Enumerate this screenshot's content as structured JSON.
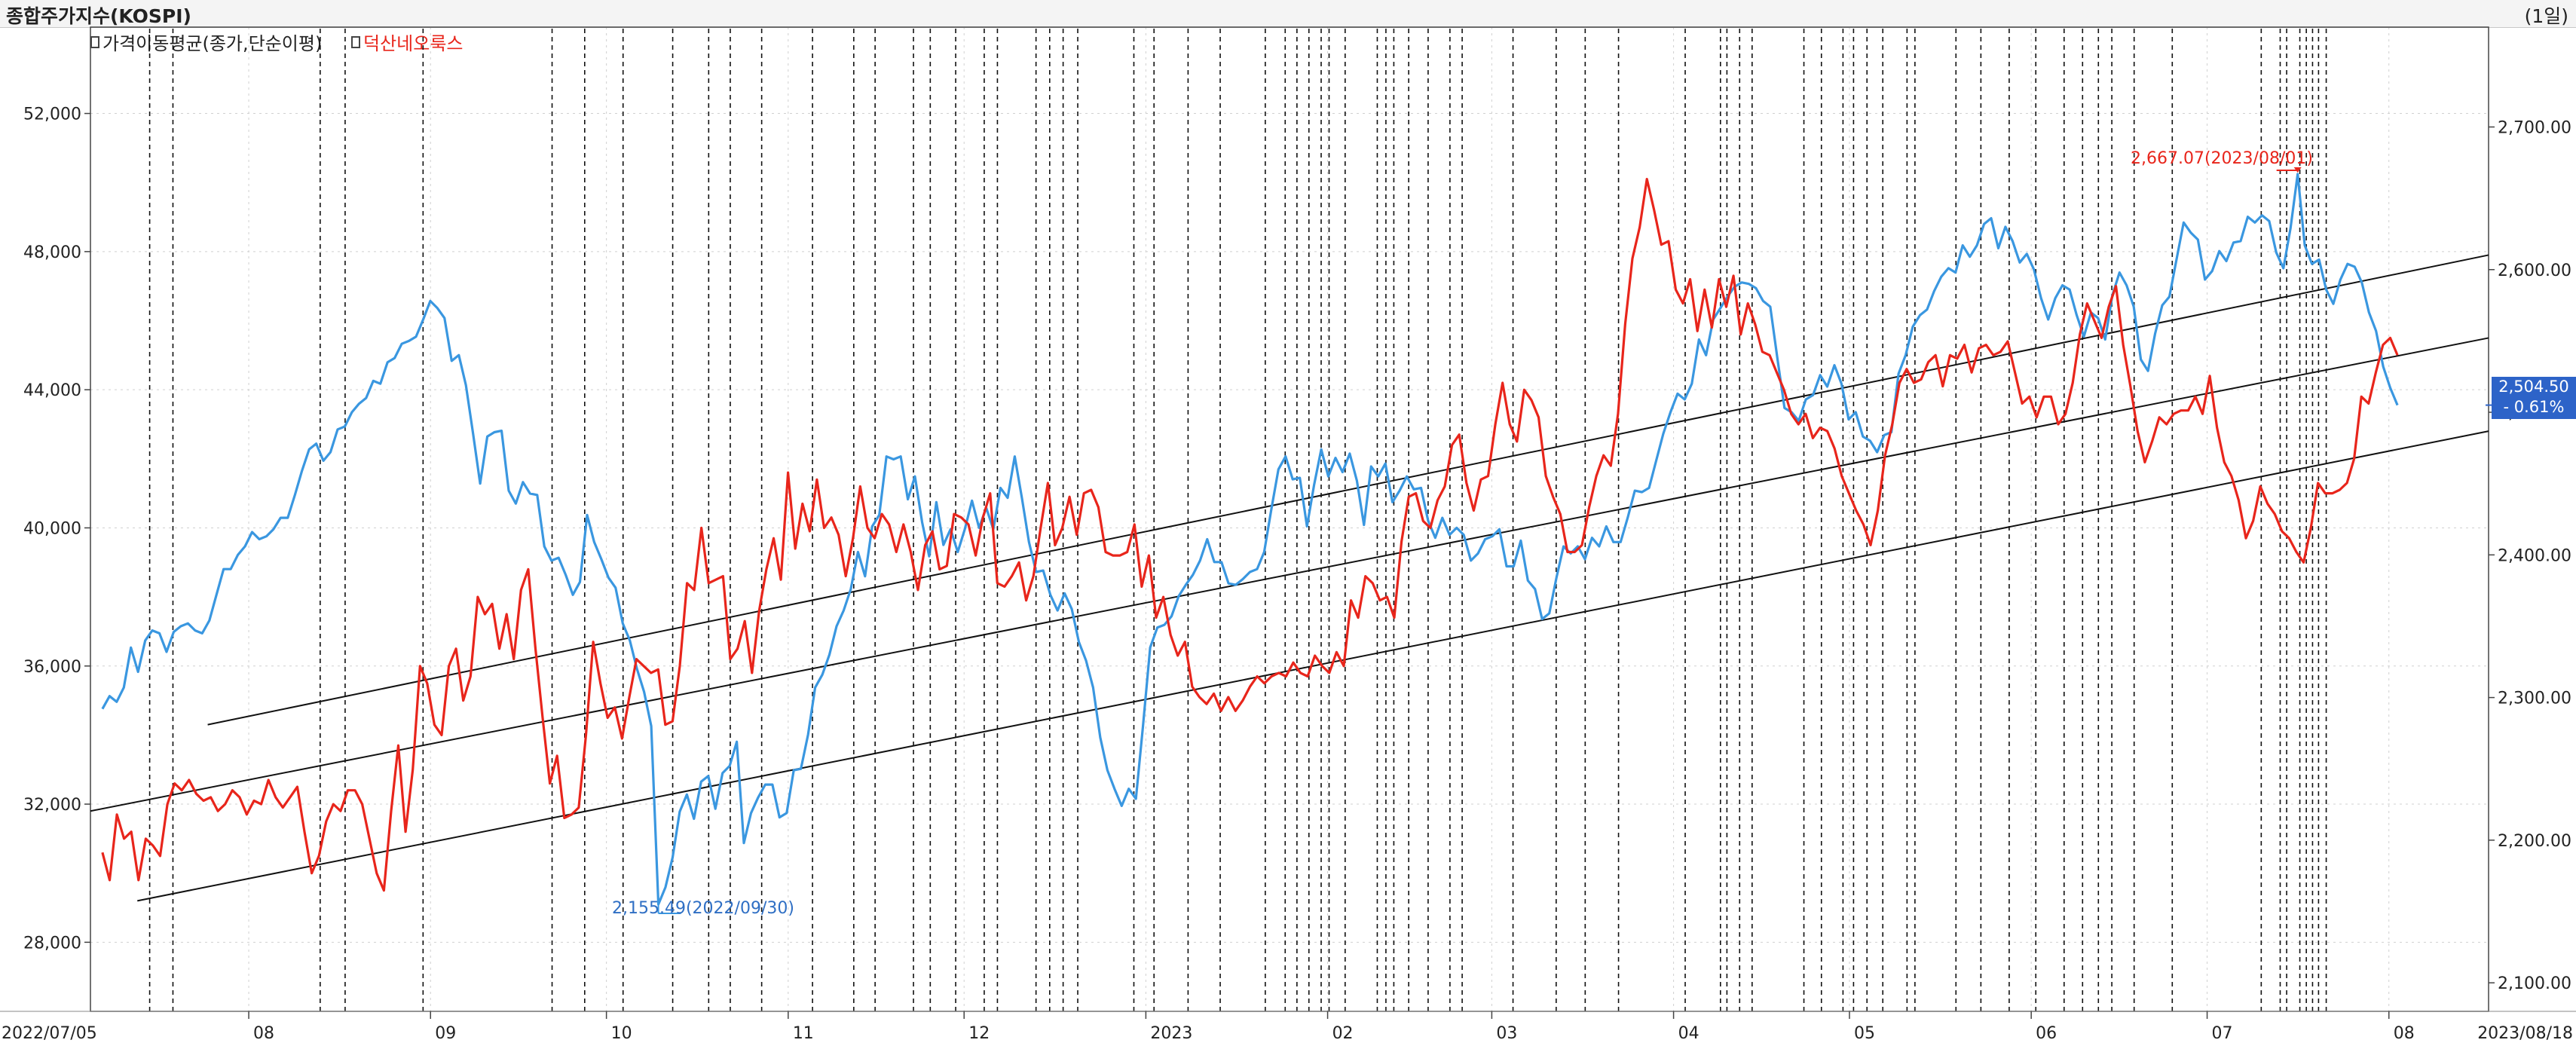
{
  "header": {
    "title": "종합주가지수(KOSPI)",
    "period": "(1일)"
  },
  "legend": {
    "moving_average": "가격이동평균(종가,단순이평)",
    "red_series": "덕산네오룩스"
  },
  "annotations": {
    "low": "2,155.49(2022/09/30)",
    "high": "2,667.07(2023/08/01)"
  },
  "current": {
    "value": "2,504.50",
    "change": "- 0.61%"
  },
  "colors": {
    "kospi": "#3a97e0",
    "stock": "#e8251b",
    "channel": "#111111",
    "vline": "#111111",
    "grid": "#d0d0d0",
    "badge": "#2d63c8"
  },
  "chart_data": {
    "type": "line",
    "x_start": "2022/07/05",
    "x_end": "2023/08/18",
    "x_tick_labels": [
      "2022/07/05",
      "08",
      "09",
      "10",
      "11",
      "12",
      "2023",
      "02",
      "03",
      "04",
      "05",
      "06",
      "07",
      "08",
      "2023/08/18"
    ],
    "left_axis": {
      "ticks": [
        "28,000",
        "32,000",
        "36,000",
        "40,000",
        "44,000",
        "48,000",
        "52,000"
      ],
      "ylim": [
        26000,
        54500
      ]
    },
    "right_axis": {
      "ticks": [
        "2,100.00",
        "2,200.00",
        "2,300.00",
        "2,400.00",
        "2,500.00",
        "2,600.00",
        "2,700.00"
      ],
      "ylim": [
        2080,
        2770
      ]
    },
    "series": [
      {
        "name": "덕산네오룩스",
        "axis": "left",
        "values": [
          30600,
          29800,
          31700,
          31000,
          31200,
          29800,
          31000,
          30800,
          30500,
          32000,
          32600,
          32400,
          32700,
          32300,
          32100,
          32200,
          31800,
          32000,
          32400,
          32200,
          31700,
          32100,
          32000,
          32700,
          32200,
          31900,
          32200,
          32500,
          31200,
          30000,
          30500,
          31500,
          32000,
          31800,
          32400,
          32400,
          32000,
          31000,
          30000,
          29500,
          31800,
          33700,
          31200,
          33000,
          36000,
          35500,
          34300,
          34000,
          36000,
          36500,
          35000,
          35700,
          38000,
          37500,
          37800,
          36500,
          37500,
          36200,
          38200,
          38800,
          36500,
          34500,
          32600,
          33400,
          31600,
          31700,
          31900,
          34000,
          36700,
          35500,
          34500,
          34800,
          33900,
          35100,
          36200,
          36000,
          35800,
          35900,
          34300,
          34400,
          36000,
          38400,
          38200,
          40000,
          38400,
          38500,
          38600,
          36200,
          36500,
          37300,
          35800,
          37600,
          38800,
          39700,
          38500,
          41600,
          39400,
          40700,
          39900,
          41400,
          40000,
          40300,
          39800,
          38600,
          39700,
          41200,
          40000,
          39700,
          40400,
          40100,
          39300,
          40100,
          39300,
          38200,
          39500,
          39900,
          38800,
          38900,
          40400,
          40300,
          40100,
          39200,
          40300,
          41000,
          38400,
          38300,
          38600,
          39000,
          37900,
          38600,
          40000,
          41300,
          39500,
          40000,
          40900,
          39800,
          41000,
          41100,
          40600,
          39300,
          39200,
          39200,
          39300,
          40100,
          38300,
          39200,
          37400,
          38000,
          36900,
          36300,
          36700,
          35400,
          35100,
          34900,
          35200,
          34700,
          35100,
          34700,
          35000,
          35400,
          35700,
          35500,
          35700,
          35800,
          35700,
          36100,
          35800,
          35700,
          36300,
          36000,
          35800,
          36400,
          36000,
          37900,
          37400,
          38600,
          38400,
          37900,
          38000,
          37400,
          39600,
          40900,
          41000,
          40200,
          40000,
          40800,
          41200,
          42400,
          42700,
          41300,
          40500,
          41400,
          41500,
          43000,
          44200,
          43000,
          42500,
          44000,
          43700,
          43200,
          41500,
          40900,
          40400,
          39300,
          39300,
          39500,
          40600,
          41500,
          42100,
          41800,
          43300,
          45900,
          47800,
          48700,
          50100,
          49200,
          48200,
          48300,
          46900,
          46500,
          47200,
          45700,
          46900,
          45800,
          47200,
          46400,
          47300,
          45600,
          46500,
          45900,
          45100,
          45000,
          44500,
          44000,
          43300,
          43000,
          43300,
          42600,
          42900,
          42800,
          42300,
          41500,
          41000,
          40500,
          40100,
          39500,
          40500,
          42100,
          43000,
          44200,
          44600,
          44200,
          44300,
          44800,
          45000,
          44100,
          45000,
          44900,
          45300,
          44500,
          45200,
          45300,
          45000,
          45100,
          45400,
          44500,
          43600,
          43800,
          43200,
          43800,
          43800,
          43000,
          43300,
          44200,
          45600,
          46500,
          46000,
          45500,
          46400,
          47000,
          45300,
          44100,
          42800,
          41900,
          42500,
          43200,
          43000,
          43300,
          43400,
          43400,
          43800,
          43300,
          44400,
          42900,
          41900,
          41500,
          40800,
          39700,
          40200,
          41200,
          40700,
          40400,
          39900,
          39700,
          39300,
          39000,
          40000,
          41300,
          41000,
          41000,
          41100,
          41300,
          42000,
          43800,
          43600,
          44500,
          45300,
          45500,
          45000
        ]
      },
      {
        "name": "",
        "axis": "right",
        "values": [
          2292,
          2301,
          2297,
          2307,
          2335,
          2318,
          2340,
          2347,
          2345,
          2332,
          2346,
          2350,
          2352,
          2347,
          2345,
          2354,
          2372,
          2390,
          2390,
          2400,
          2406,
          2416,
          2411,
          2413,
          2418,
          2426,
          2426,
          2442,
          2459,
          2474,
          2478,
          2466,
          2472,
          2488,
          2490,
          2500,
          2506,
          2510,
          2522,
          2520,
          2535,
          2538,
          2548,
          2550,
          2553,
          2565,
          2578,
          2573,
          2566,
          2536,
          2540,
          2519,
          2485,
          2450,
          2483,
          2486,
          2487,
          2445,
          2436,
          2451,
          2443,
          2442,
          2406,
          2396,
          2398,
          2386,
          2372,
          2381,
          2428,
          2409,
          2397,
          2384,
          2377,
          2352,
          2340,
          2320,
          2304,
          2280,
          2155,
          2167,
          2188,
          2220,
          2232,
          2215,
          2241,
          2245,
          2222,
          2247,
          2252,
          2269,
          2198,
          2219,
          2230,
          2239,
          2239,
          2216,
          2219,
          2249,
          2250,
          2274,
          2307,
          2316,
          2330,
          2350,
          2361,
          2376,
          2402,
          2385,
          2420,
          2428,
          2469,
          2467,
          2469,
          2439,
          2455,
          2423,
          2399,
          2437,
          2407,
          2418,
          2402,
          2418,
          2438,
          2419,
          2433,
          2418,
          2447,
          2440,
          2469,
          2440,
          2409,
          2388,
          2389,
          2372,
          2361,
          2373,
          2362,
          2339,
          2326,
          2307,
          2272,
          2249,
          2236,
          2224,
          2236,
          2229,
          2280,
          2335,
          2349,
          2351,
          2357,
          2371,
          2379,
          2386,
          2396,
          2411,
          2395,
          2395,
          2380,
          2379,
          2383,
          2388,
          2390,
          2402,
          2432,
          2460,
          2469,
          2453,
          2454,
          2420,
          2449,
          2474,
          2455,
          2468,
          2458,
          2471,
          2452,
          2421,
          2462,
          2455,
          2464,
          2437,
          2445,
          2455,
          2446,
          2447,
          2424,
          2412,
          2426,
          2414,
          2419,
          2414,
          2396,
          2401,
          2411,
          2413,
          2418,
          2392,
          2392,
          2410,
          2382,
          2376,
          2355,
          2359,
          2384,
          2406,
          2401,
          2406,
          2397,
          2412,
          2406,
          2420,
          2409,
          2409,
          2426,
          2445,
          2444,
          2447,
          2466,
          2485,
          2500,
          2513,
          2509,
          2520,
          2551,
          2540,
          2565,
          2573,
          2581,
          2588,
          2591,
          2590,
          2587,
          2578,
          2574,
          2538,
          2503,
          2500,
          2494,
          2509,
          2512,
          2526,
          2518,
          2533,
          2520,
          2495,
          2500,
          2483,
          2480,
          2472,
          2484,
          2486,
          2527,
          2540,
          2560,
          2568,
          2572,
          2585,
          2595,
          2601,
          2598,
          2617,
          2609,
          2617,
          2632,
          2636,
          2615,
          2630,
          2620,
          2605,
          2611,
          2600,
          2580,
          2565,
          2580,
          2589,
          2586,
          2568,
          2553,
          2570,
          2566,
          2551,
          2582,
          2598,
          2589,
          2574,
          2537,
          2529,
          2555,
          2575,
          2581,
          2607,
          2633,
          2626,
          2621,
          2593,
          2599,
          2613,
          2606,
          2619,
          2620,
          2637,
          2633,
          2638,
          2634,
          2612,
          2601,
          2629,
          2667,
          2617,
          2604,
          2607,
          2586,
          2576,
          2593,
          2604,
          2602,
          2591,
          2570,
          2557,
          2532,
          2517,
          2505
        ]
      }
    ],
    "trend_channel": [
      {
        "x": [
          "2022/07/05",
          "2023/08/18"
        ],
        "y": [
          31800,
          45500
        ],
        "axis": "left"
      },
      {
        "x": [
          "2022/07/25",
          "2023/08/18"
        ],
        "y": [
          34300,
          47900
        ],
        "axis": "left"
      },
      {
        "x": [
          "2022/07/13",
          "2023/08/18"
        ],
        "y": [
          29200,
          42800
        ],
        "axis": "left"
      }
    ],
    "grid": true
  }
}
